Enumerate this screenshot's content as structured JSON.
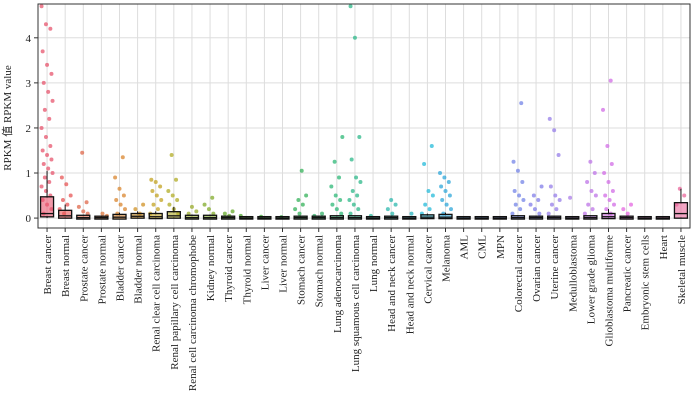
{
  "chart_data": {
    "type": "box-jitter",
    "y_label": "RPKM 值 RPKM value",
    "categories": [
      "Breast cancer",
      "Breast normal",
      "Prostate cancer",
      "Prostate normal",
      "Bladder cancer",
      "Bladder normal",
      "Renal clear cell carcinoma",
      "Renal papillary cell carcinoma",
      "Renal cell carcinoma chromophobe",
      "Kidney normal",
      "Thyroid cancer",
      "Thyroid normal",
      "Liver cancer",
      "Liver normal",
      "Stomach cancer",
      "Stomach normal",
      "Lung adenocarcinoma",
      "Lung squamous cell carcinoma",
      "Lung normal",
      "Head and neck cancer",
      "Head and neck normal",
      "Cervical cancer",
      "Melanoma",
      "AML",
      "CML",
      "MPN",
      "Colorectal cancer",
      "Ovarian cancer",
      "Uterine cancer",
      "Medulloblastoma",
      "Lower grade glioma",
      "Glioblastoma multiforme",
      "Pancreatic cancer",
      "Embryonic stem cells",
      "Heart",
      "Skeletal muscle"
    ],
    "colors": [
      "hsl(350,75%,62%)",
      "hsl(0,75%,62%)",
      "hsl(12,70%,58%)",
      "hsl(22,70%,55%)",
      "hsl(30,70%,52%)",
      "hsl(38,70%,48%)",
      "hsl(48,70%,45%)",
      "hsl(58,65%,42%)",
      "hsl(68,60%,42%)",
      "hsl(80,60%,42%)",
      "hsl(92,60%,42%)",
      "hsl(104,55%,42%)",
      "hsl(116,55%,42%)",
      "hsl(128,55%,42%)",
      "hsl(138,55%,45%)",
      "hsl(146,55%,45%)",
      "hsl(152,60%,45%)",
      "hsl(160,60%,45%)",
      "hsl(168,60%,45%)",
      "hsl(176,60%,45%)",
      "hsl(184,65%,45%)",
      "hsl(190,70%,50%)",
      "hsl(198,70%,52%)",
      "hsl(206,70%,58%)",
      "hsl(214,70%,62%)",
      "hsl(222,70%,65%)",
      "hsl(232,70%,68%)",
      "hsl(242,70%,70%)",
      "hsl(254,70%,70%)",
      "hsl(266,70%,70%)",
      "hsl(278,70%,68%)",
      "hsl(290,70%,66%)",
      "hsl(302,70%,65%)",
      "hsl(314,70%,65%)",
      "hsl(326,70%,65%)",
      "hsl(336,75%,66%)"
    ],
    "low": [
      0,
      0,
      0,
      0,
      0,
      0,
      0,
      0,
      0,
      0,
      0,
      0,
      0,
      0,
      0,
      0,
      0,
      0,
      0,
      0,
      0,
      0,
      0,
      0,
      0,
      0,
      0,
      0,
      0,
      0,
      0,
      0,
      0,
      0,
      0,
      0
    ],
    "q1": [
      0.05,
      0.02,
      0,
      0,
      0,
      0.02,
      0.01,
      0.02,
      0,
      0,
      0,
      0,
      0,
      0,
      0,
      0,
      0,
      0,
      0,
      0,
      0,
      0.01,
      0.01,
      0,
      0,
      0,
      0,
      0,
      0,
      0,
      0,
      0.01,
      0,
      0,
      0,
      0.02
    ],
    "median": [
      0.1,
      0.05,
      0.01,
      0.01,
      0.02,
      0.04,
      0.03,
      0.05,
      0.01,
      0.01,
      0.01,
      0,
      0,
      0,
      0.01,
      0.01,
      0.01,
      0.01,
      0,
      0.01,
      0,
      0.02,
      0.02,
      0,
      0,
      0,
      0.01,
      0.01,
      0.01,
      0,
      0.01,
      0.03,
      0.01,
      0,
      0,
      0.1
    ],
    "q3": [
      0.45,
      0.15,
      0.04,
      0.02,
      0.06,
      0.08,
      0.08,
      0.12,
      0.04,
      0.04,
      0.02,
      0.01,
      0.01,
      0.01,
      0.02,
      0.02,
      0.03,
      0.03,
      0.01,
      0.02,
      0.01,
      0.05,
      0.06,
      0.01,
      0.01,
      0.01,
      0.03,
      0.02,
      0.02,
      0.01,
      0.03,
      0.08,
      0.02,
      0.01,
      0.01,
      0.32
    ],
    "high": [
      1.05,
      0.3,
      0.08,
      0.04,
      0.12,
      0.15,
      0.15,
      0.25,
      0.08,
      0.08,
      0.04,
      0.02,
      0.02,
      0.02,
      0.04,
      0.04,
      0.06,
      0.06,
      0.02,
      0.04,
      0.02,
      0.1,
      0.12,
      0.02,
      0.02,
      0.02,
      0.06,
      0.04,
      0.04,
      0.02,
      0.06,
      0.2,
      0.04,
      0.02,
      0.02,
      0.65
    ],
    "points": [
      [
        4.7,
        4.3,
        4.2,
        3.7,
        3.4,
        3.2,
        3.0,
        2.8,
        2.6,
        2.4,
        2.2,
        2.0,
        1.8,
        1.6,
        1.5,
        1.4,
        1.3,
        1.2,
        1.1,
        1.0,
        0.9,
        0.8,
        0.7,
        0.6,
        0.5,
        0.4,
        0.3,
        0.2,
        0.1
      ],
      [
        0.9,
        0.75,
        0.5,
        0.4,
        0.3,
        0.2,
        0.1
      ],
      [
        1.45,
        0.35,
        0.25,
        0.15,
        0.1
      ],
      [
        0.1,
        0.05
      ],
      [
        1.35,
        0.9,
        0.65,
        0.5,
        0.4,
        0.3,
        0.2,
        0.1
      ],
      [
        0.3,
        0.2,
        0.1
      ],
      [
        0.85,
        0.8,
        0.7,
        0.6,
        0.5,
        0.4,
        0.3,
        0.2,
        0.1
      ],
      [
        1.4,
        0.85,
        0.6,
        0.5,
        0.4,
        0.3,
        0.2,
        0.1
      ],
      [
        0.25,
        0.15,
        0.1
      ],
      [
        0.45,
        0.3,
        0.2,
        0.1
      ],
      [
        0.15,
        0.1,
        0.05
      ],
      [
        0.05
      ],
      [
        0.03
      ],
      [
        0.02
      ],
      [
        1.05,
        0.5,
        0.4,
        0.3,
        0.2,
        0.1
      ],
      [
        0.1,
        0.05
      ],
      [
        1.8,
        1.25,
        0.9,
        0.7,
        0.5,
        0.4,
        0.3,
        0.2,
        0.1
      ],
      [
        4.7,
        4.0,
        1.8,
        1.3,
        0.9,
        0.8,
        0.6,
        0.5,
        0.4,
        0.3,
        0.2,
        0.1
      ],
      [
        0.05
      ],
      [
        0.4,
        0.3,
        0.2,
        0.1
      ],
      [
        0.1
      ],
      [
        1.6,
        1.2,
        0.6,
        0.5,
        0.3,
        0.2,
        0.1
      ],
      [
        1.0,
        0.9,
        0.8,
        0.7,
        0.6,
        0.5,
        0.4,
        0.3,
        0.2,
        0.1
      ],
      [],
      [],
      [],
      [
        2.55,
        1.25,
        1.05,
        0.8,
        0.6,
        0.5,
        0.4,
        0.3,
        0.2,
        0.1
      ],
      [
        0.7,
        0.5,
        0.4,
        0.3,
        0.2,
        0.1
      ],
      [
        2.2,
        1.95,
        1.4,
        0.7,
        0.5,
        0.4,
        0.3,
        0.2,
        0.1
      ],
      [
        0.45
      ],
      [
        1.25,
        1.0,
        0.8,
        0.6,
        0.5,
        0.3,
        0.2,
        0.1
      ],
      [
        3.05,
        2.4,
        1.6,
        1.2,
        1.0,
        0.8,
        0.6,
        0.5,
        0.4,
        0.3,
        0.2,
        0.1
      ],
      [
        0.3,
        0.2,
        0.1
      ],
      [],
      [],
      [
        0.65,
        0.5,
        0.3
      ]
    ],
    "ylim": [
      -0.22,
      4.75
    ],
    "yticks": [
      0,
      1,
      2,
      3,
      4
    ],
    "grid": true
  }
}
